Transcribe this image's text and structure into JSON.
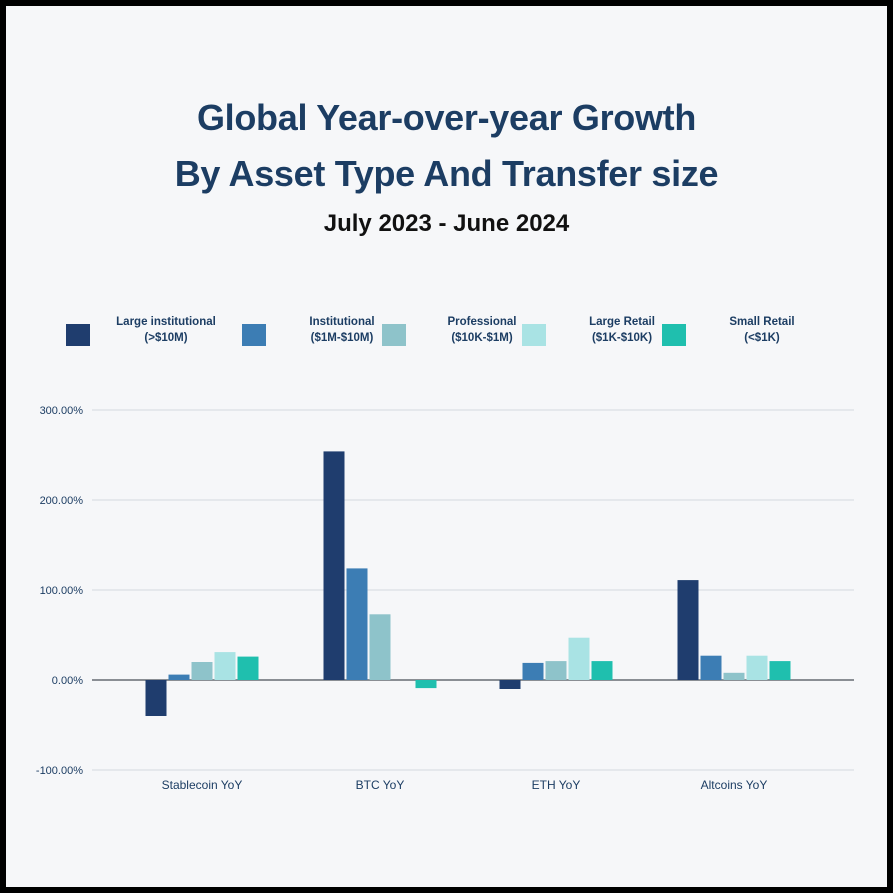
{
  "title_lines": [
    "Global Year-over-year Growth",
    "By Asset Type And Transfer size"
  ],
  "subtitle": "July 2023 - June 2024",
  "legend": [
    {
      "line1": "Large institutional",
      "line2": "(>$10M)",
      "color": "#1f3d6e"
    },
    {
      "line1": "Institutional",
      "line2": "($1M-$10M)",
      "color": "#3c7db4"
    },
    {
      "line1": "Professional",
      "line2": "($10K-$1M)",
      "color": "#8ec3ca"
    },
    {
      "line1": "Large Retail",
      "line2": "($1K-$10K)",
      "color": "#a9e3e4"
    },
    {
      "line1": "Small Retail",
      "line2": "(<$1K)",
      "color": "#1fbfae"
    }
  ],
  "chart_data": {
    "type": "bar",
    "title": "Global Year-over-year Growth By Asset Type And Transfer size",
    "subtitle": "July 2023 - June 2024",
    "categories": [
      "Stablecoin YoY",
      "BTC YoY",
      "ETH YoY",
      "Altcoins YoY"
    ],
    "series": [
      {
        "name": "Large institutional (>$10M)",
        "color": "#1f3d6e",
        "values": [
          -40,
          254,
          -10,
          111
        ]
      },
      {
        "name": "Institutional ($1M-$10M)",
        "color": "#3c7db4",
        "values": [
          6,
          124,
          19,
          27
        ]
      },
      {
        "name": "Professional ($10K-$1M)",
        "color": "#8ec3ca",
        "values": [
          20,
          73,
          21,
          8
        ]
      },
      {
        "name": "Large Retail ($1K-$10K)",
        "color": "#a9e3e4",
        "values": [
          31,
          0,
          47,
          27
        ]
      },
      {
        "name": "Small Retail (<$1K)",
        "color": "#1fbfae",
        "values": [
          26,
          -9,
          21,
          21
        ]
      }
    ],
    "yticks": [
      "-100.00%",
      "0.00%",
      "100.00%",
      "200.00%",
      "300.00%"
    ],
    "ytick_values": [
      -100,
      0,
      100,
      200,
      300
    ],
    "ylim": [
      -100,
      300
    ],
    "xlabel": "",
    "ylabel": "",
    "grid": true,
    "legend_position": "top"
  }
}
